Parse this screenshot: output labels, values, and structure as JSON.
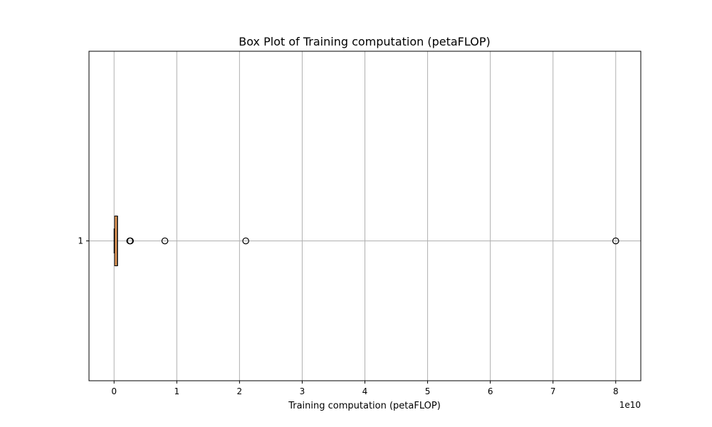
{
  "chart_data": {
    "type": "box",
    "orientation": "horizontal",
    "title": "Box Plot of Training computation (petaFLOP)",
    "xlabel": "Training computation (petaFLOP)",
    "ylabel": "",
    "x_offset_label": "1e10",
    "x_scale_exponent": 10,
    "xlim": [
      -0.4,
      8.4
    ],
    "x_ticks": [
      0,
      1,
      2,
      3,
      4,
      5,
      6,
      7,
      8
    ],
    "x_tick_labels": [
      "0",
      "1",
      "2",
      "3",
      "4",
      "5",
      "6",
      "7",
      "8"
    ],
    "y_tick_labels": [
      "1"
    ],
    "grid": true,
    "boxes": [
      {
        "category": "1",
        "whisker_low": 0.0,
        "q1": 0.01,
        "median": 0.05,
        "q3": 0.05,
        "whisker_high": 0.05,
        "outliers": [
          0.25,
          0.26,
          0.81,
          2.1,
          8.0
        ]
      }
    ],
    "box_color": "#f4a460",
    "grid_color": "#b0b0b0"
  }
}
